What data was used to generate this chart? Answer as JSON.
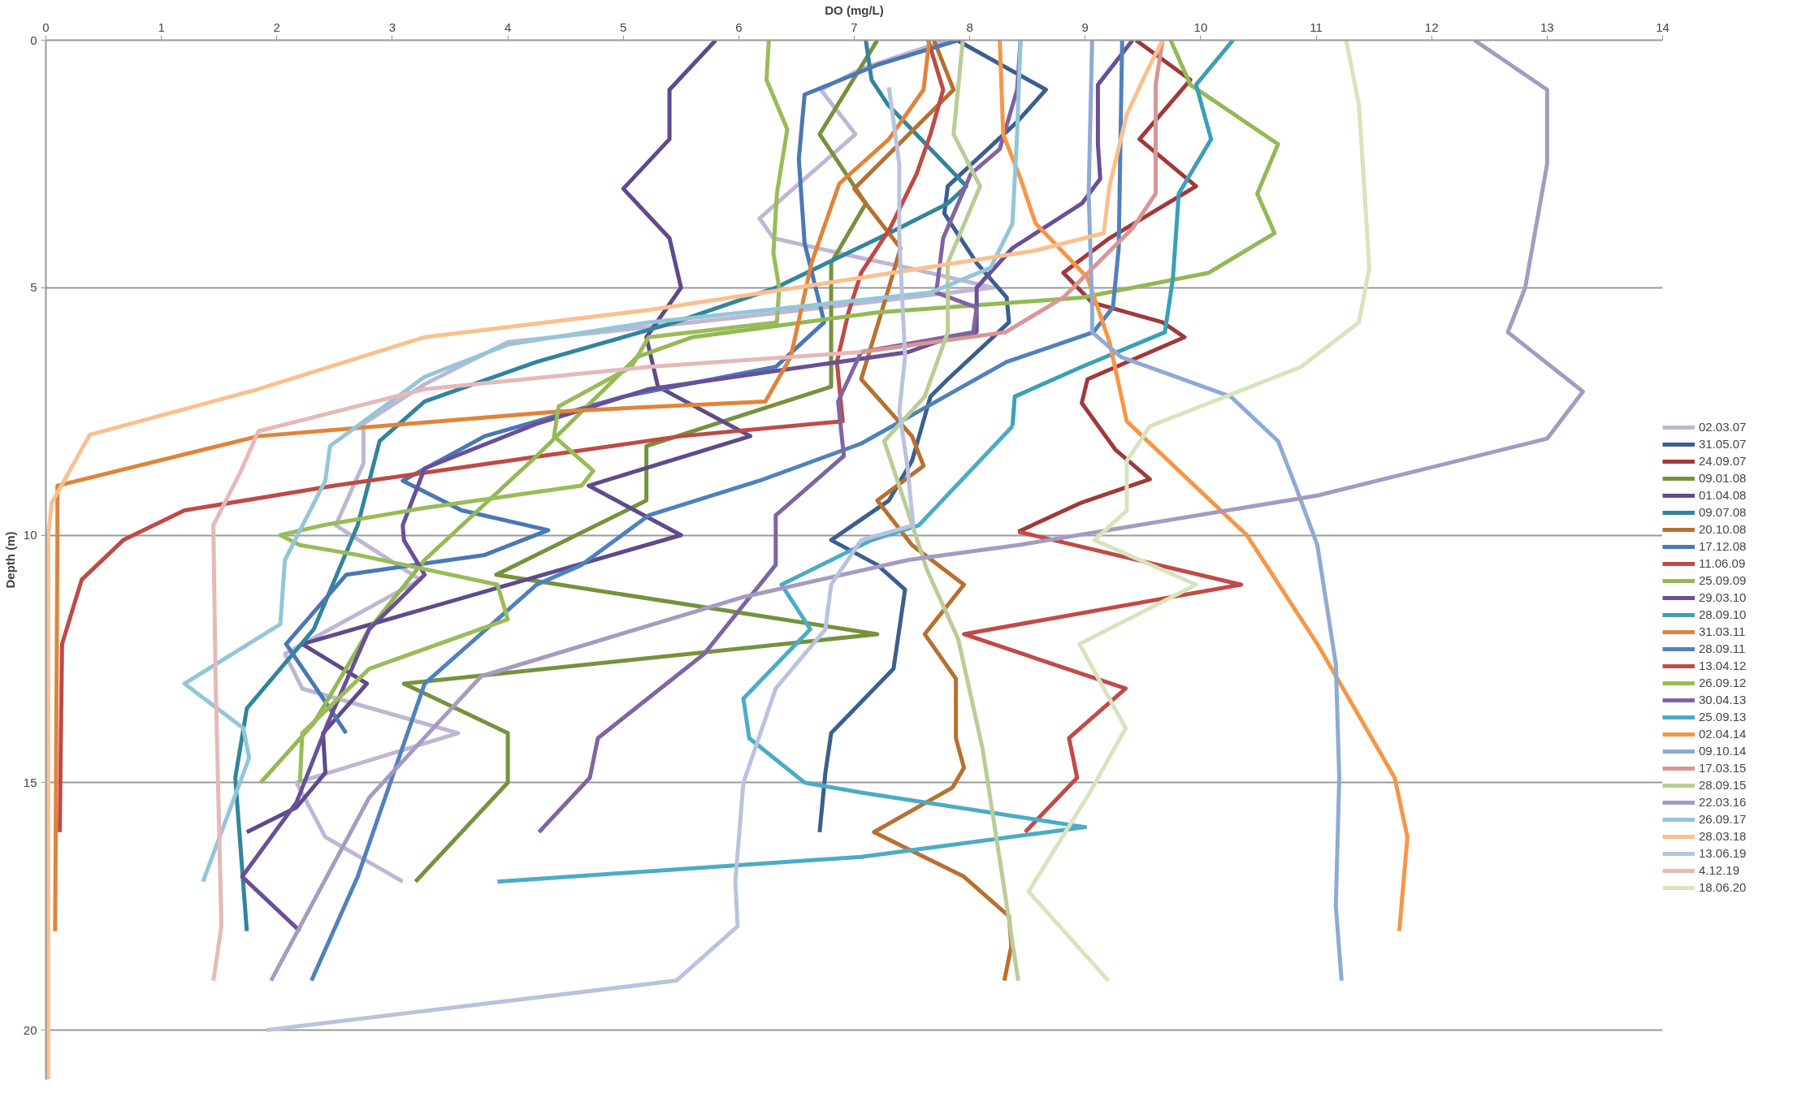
{
  "chart_data": {
    "type": "line",
    "xlabel": "DO (mg/L)",
    "ylabel": "Depth (m)",
    "xlim": [
      0,
      14
    ],
    "xticks": [
      0,
      1,
      2,
      3,
      4,
      5,
      6,
      7,
      8,
      9,
      10,
      11,
      12,
      13,
      14
    ],
    "ylim": [
      21,
      0
    ],
    "yticks": [
      0,
      5,
      10,
      15,
      20
    ],
    "grid": "y",
    "legend": "right",
    "marker": "none",
    "line_style": "solid",
    "series": [
      {
        "name": "02.03.07",
        "color": "#c0b6d4",
        "x": [
          7.8,
          7.06,
          6.71,
          7.01,
          6.18,
          6.3,
          7.06,
          7.47,
          8.2,
          6.0,
          4.0,
          3.28,
          2.75,
          2.75,
          2.51,
          3.24,
          2.07,
          2.22,
          3.57,
          2.17,
          2.42,
          3.09
        ],
        "values": [
          0,
          0.58,
          1.0,
          1.9,
          3.6,
          4.0,
          4.4,
          4.6,
          5.0,
          5.6,
          6.1,
          6.95,
          7.75,
          8.55,
          9.8,
          10.9,
          12.4,
          13.1,
          14.0,
          15.0,
          16.1,
          17.0
        ]
      },
      {
        "name": "31.05.07",
        "color": "#3b5f8e",
        "x": [
          7.89,
          8.66,
          8.41,
          7.81,
          7.78,
          8.06,
          8.32,
          8.34,
          7.81,
          7.66,
          7.5,
          7.3,
          6.8,
          7.2,
          7.44,
          7.34,
          6.8,
          6.75,
          6.7
        ],
        "values": [
          0,
          1.0,
          1.65,
          2.95,
          3.5,
          4.5,
          5.2,
          5.7,
          6.85,
          7.2,
          8.5,
          9.3,
          10.1,
          10.6,
          11.1,
          12.7,
          14.0,
          14.8,
          16.0
        ]
      },
      {
        "name": "24.09.07",
        "color": "#a0393b",
        "x": [
          9.44,
          9.91,
          9.47,
          9.96,
          9.21,
          8.81,
          9.06,
          9.67,
          9.86,
          9.02,
          8.97,
          9.26,
          9.56,
          8.97,
          8.42
        ],
        "values": [
          0,
          0.8,
          2.0,
          2.95,
          4.0,
          4.7,
          5.3,
          5.7,
          6.0,
          6.85,
          7.33,
          8.27,
          8.87,
          9.34,
          9.93
        ]
      },
      {
        "name": "09.01.08",
        "color": "#76923c",
        "x": [
          7.2,
          6.7,
          7.1,
          6.8,
          6.8,
          5.2,
          5.2,
          3.9,
          7.2,
          3.1,
          4.0,
          4.0,
          3.2
        ],
        "values": [
          0,
          1.9,
          3.3,
          4.5,
          7.0,
          8.2,
          9.3,
          10.8,
          12.0,
          13.0,
          14.0,
          15.0,
          17.0
        ]
      },
      {
        "name": "01.04.08",
        "color": "#5f4a8b",
        "x": [
          5.8,
          5.4,
          5.4,
          5.0,
          5.4,
          5.5,
          5.2,
          5.3,
          6.1,
          4.7,
          5.5,
          2.22,
          2.78,
          2.4,
          2.42,
          2.17,
          1.74
        ],
        "values": [
          0,
          1,
          2,
          3,
          4,
          5,
          6,
          7,
          8,
          9,
          10,
          12.2,
          13.0,
          14.0,
          14.8,
          15.5,
          16.0
        ]
      },
      {
        "name": "09.07.08",
        "color": "#31859c",
        "x": [
          7.1,
          7.15,
          7.29,
          7.97,
          7.81,
          7.3,
          6.32,
          5.45,
          4.25,
          3.28,
          2.89,
          2.7,
          2.32,
          1.74,
          1.64,
          1.74
        ],
        "values": [
          0,
          0.8,
          1.3,
          2.95,
          3.3,
          3.9,
          5.0,
          5.7,
          6.5,
          7.3,
          8.1,
          9.8,
          11.9,
          13.5,
          14.9,
          18.0
        ]
      },
      {
        "name": "20.10.08",
        "color": "#b8702f",
        "x": [
          7.69,
          7.86,
          7.0,
          7.4,
          7.3,
          7.06,
          7.5,
          7.6,
          7.2,
          7.5,
          7.95,
          7.61,
          7.88,
          7.88,
          7.95,
          7.85,
          7.17,
          7.95,
          8.34,
          8.36,
          8.3
        ],
        "values": [
          0,
          1.0,
          3.0,
          4.2,
          5.0,
          6.85,
          8.0,
          8.6,
          9.3,
          10.2,
          11.0,
          12.0,
          12.9,
          14.1,
          14.7,
          15.1,
          16.0,
          16.9,
          17.7,
          18.3,
          19.0
        ]
      },
      {
        "name": "17.12.08",
        "color": "#4a78b5",
        "x": [
          7.9,
          7.2,
          6.57,
          6.52,
          6.57,
          6.74,
          6.32,
          5.0,
          3.8,
          3.09,
          3.6,
          4.35,
          3.8,
          2.6,
          2.08,
          2.4,
          2.6
        ],
        "values": [
          0,
          0.5,
          1.1,
          2.4,
          4.1,
          5.7,
          6.6,
          7.2,
          8.0,
          8.9,
          9.5,
          9.9,
          10.4,
          10.8,
          12.2,
          13.3,
          14.0
        ]
      },
      {
        "name": "11.06.09",
        "color": "#bf4a46",
        "x": [
          7.64,
          7.77,
          7.66,
          7.54,
          7.31,
          7.06,
          6.95,
          6.85,
          6.9,
          5.5,
          4.0,
          2.5,
          1.2,
          0.67,
          0.31,
          0.14,
          0.13,
          0.12
        ],
        "values": [
          0,
          1.0,
          1.9,
          2.7,
          3.8,
          4.7,
          5.5,
          6.5,
          7.7,
          8.0,
          8.5,
          9.0,
          9.5,
          10.1,
          10.9,
          12.2,
          14.0,
          16.0
        ]
      },
      {
        "name": "25.09.09",
        "color": "#93b955",
        "x": [
          9.74,
          9.91,
          10.67,
          10.49,
          10.64,
          10.07,
          8.97,
          7.2,
          6.4,
          5.6,
          5.12,
          4.25,
          3.28,
          2.8,
          2.32,
          1.86
        ],
        "values": [
          0,
          0.9,
          2.1,
          3.1,
          3.9,
          4.7,
          5.2,
          5.5,
          5.75,
          6.0,
          6.4,
          8.4,
          10.5,
          11.9,
          13.8,
          15.0
        ]
      },
      {
        "name": "29.03.10",
        "color": "#6a4f99",
        "x": [
          9.41,
          9.11,
          9.11,
          9.13,
          8.97,
          8.37,
          8.06,
          8.06,
          7.71,
          7.47,
          5.22,
          4.25,
          3.28,
          3.09,
          3.1,
          3.28,
          2.8,
          2.44,
          2.17,
          1.7,
          2.2
        ],
        "values": [
          0,
          0.9,
          2.1,
          2.8,
          3.3,
          4.2,
          5.0,
          5.9,
          6.1,
          6.3,
          7.05,
          7.75,
          8.65,
          9.8,
          10.1,
          10.8,
          11.9,
          13.8,
          15.4,
          16.9,
          18.0
        ]
      },
      {
        "name": "28.09.10",
        "color": "#3aa0b8",
        "x": [
          10.28,
          9.96,
          10.09,
          9.81,
          9.76,
          9.69,
          8.97,
          8.39,
          8.37
        ],
        "values": [
          0,
          0.9,
          2.0,
          3.1,
          4.8,
          5.9,
          6.6,
          7.2,
          7.8
        ]
      },
      {
        "name": "31.03.11",
        "color": "#e0843b",
        "x": [
          7.65,
          7.6,
          7.3,
          6.87,
          6.63,
          6.45,
          6.23,
          4.44,
          1.84,
          0.1,
          0.1,
          0.08
        ],
        "values": [
          0,
          1,
          2,
          2.9,
          4.5,
          6.4,
          7.3,
          7.5,
          8.0,
          9.0,
          10.0,
          18.0
        ]
      },
      {
        "name": "28.09.11",
        "color": "#4f81bd",
        "x": [
          9.32,
          9.29,
          9.24,
          9.07,
          8.32,
          7.06,
          6.18,
          5.22,
          4.64,
          4.25,
          3.28,
          2.7,
          2.3
        ],
        "values": [
          0,
          4.2,
          5.4,
          5.9,
          6.5,
          8.15,
          8.9,
          9.6,
          10.6,
          11.0,
          13.0,
          16.9,
          19.0
        ]
      },
      {
        "name": "13.04.12",
        "color": "#c24a47",
        "x": [
          8.42,
          10.35,
          7.95,
          9.35,
          8.86,
          8.93,
          8.48
        ],
        "values": [
          9.93,
          11.0,
          12.0,
          13.1,
          14.1,
          14.9,
          16.0
        ]
      },
      {
        "name": "26.09.12",
        "color": "#9bbb59",
        "x": [
          6.26,
          6.24,
          6.42,
          6.33,
          6.3,
          6.35,
          6.33,
          5.22,
          5.07,
          4.44,
          4.4,
          4.74,
          4.64,
          3.28,
          2.4,
          2.03,
          2.2,
          2.7,
          3.91,
          4.0,
          2.8,
          2.22,
          2.2
        ],
        "values": [
          0,
          0.8,
          1.8,
          3.1,
          4.3,
          5.0,
          5.7,
          6.0,
          6.6,
          7.4,
          8.0,
          8.7,
          9.0,
          9.45,
          9.8,
          10.0,
          10.2,
          10.4,
          11.0,
          11.7,
          12.7,
          14.0,
          15.0
        ]
      },
      {
        "name": "30.04.13",
        "color": "#8064a2",
        "x": [
          8.44,
          8.41,
          8.26,
          8.01,
          7.77,
          7.71,
          8.06,
          8.03,
          7.06,
          6.86,
          6.91,
          6.32,
          6.32,
          5.7,
          4.78,
          4.71,
          4.27
        ],
        "values": [
          0,
          1.0,
          2.2,
          2.7,
          4.0,
          5.1,
          5.4,
          5.9,
          6.3,
          7.3,
          8.4,
          9.6,
          10.6,
          12.4,
          14.1,
          14.9,
          16.0
        ]
      },
      {
        "name": "25.09.13",
        "color": "#4bacc6",
        "x": [
          8.37,
          7.56,
          7.15,
          6.37,
          6.62,
          6.04,
          6.09,
          6.57,
          7.06,
          9.0,
          7.06,
          3.91
        ],
        "values": [
          7.8,
          9.8,
          10.1,
          11.0,
          11.9,
          13.3,
          14.1,
          15.0,
          15.2,
          15.9,
          16.5,
          17.0
        ]
      },
      {
        "name": "02.04.14",
        "color": "#f79646",
        "x": [
          8.26,
          8.29,
          8.44,
          8.57,
          9.02,
          9.21,
          9.36,
          10.4,
          11.01,
          11.68,
          11.79,
          11.72
        ],
        "values": [
          0,
          1.9,
          2.8,
          3.7,
          4.8,
          6.1,
          7.7,
          10.0,
          12.2,
          14.9,
          16.1,
          18.0
        ]
      },
      {
        "name": "09.10.14",
        "color": "#8faad3",
        "x": [
          9.06,
          9.03,
          9.06,
          9.06,
          9.31,
          10.26,
          10.67,
          10.82,
          11.01,
          11.17,
          11.2,
          11.17,
          11.22
        ],
        "values": [
          0,
          3.1,
          5.4,
          5.9,
          6.4,
          7.2,
          8.1,
          9.0,
          10.2,
          12.6,
          14.9,
          17.5,
          19.0
        ]
      },
      {
        "name": "17.03.15",
        "color": "#d99694",
        "x": [
          9.67,
          9.61,
          9.61,
          9.41,
          8.81,
          8.31,
          7.06
        ],
        "values": [
          0,
          0.9,
          3.1,
          3.8,
          5.2,
          5.9,
          6.3
        ]
      },
      {
        "name": "28.09.15",
        "color": "#b9cd96",
        "x": [
          7.94,
          7.86,
          8.09,
          7.81,
          7.81,
          7.61,
          7.26,
          7.46,
          7.63,
          7.9,
          8.11,
          8.25,
          8.42
        ],
        "values": [
          0,
          1.9,
          2.95,
          4.5,
          5.9,
          7.2,
          8.1,
          9.5,
          10.7,
          12.1,
          14.3,
          16.4,
          19.0
        ]
      },
      {
        "name": "22.03.16",
        "color": "#a59bc0",
        "x": [
          12.37,
          13.0,
          13.0,
          12.81,
          12.66,
          13.31,
          13.0,
          11.01,
          8.42,
          7.47,
          6.04,
          3.77,
          2.8,
          1.95
        ],
        "values": [
          0,
          1.0,
          2.5,
          5.0,
          5.9,
          7.1,
          8.05,
          9.2,
          10.2,
          10.5,
          11.25,
          12.85,
          15.3,
          19.0
        ]
      },
      {
        "name": "26.09.17",
        "color": "#93c6d8",
        "x": [
          8.44,
          8.41,
          8.37,
          8.18,
          7.66,
          7.06,
          5.22,
          4.0,
          3.28,
          2.46,
          2.42,
          2.07,
          2.03,
          1.2,
          1.71,
          1.76,
          1.36
        ],
        "values": [
          0,
          1.9,
          3.7,
          4.6,
          5.1,
          5.25,
          5.7,
          6.15,
          6.8,
          8.2,
          8.9,
          10.5,
          11.8,
          13.0,
          13.9,
          14.5,
          17.0
        ]
      },
      {
        "name": "28.03.18",
        "color": "#fac08f",
        "x": [
          9.67,
          9.52,
          9.36,
          9.21,
          9.16,
          8.57,
          7.06,
          5.22,
          3.28,
          1.84,
          0.38,
          0.05,
          0.02,
          0.02
        ],
        "values": [
          0,
          0.7,
          1.5,
          2.95,
          3.9,
          4.25,
          4.8,
          5.45,
          6.0,
          7.05,
          7.97,
          9.35,
          10.0,
          21.0
        ]
      },
      {
        "name": "13.06.19",
        "color": "#b9c3de",
        "x": [
          7.3,
          7.39,
          7.39,
          7.44,
          7.39,
          7.46,
          7.51,
          7.06,
          6.8,
          6.75,
          6.32,
          6.04,
          5.97,
          5.99,
          5.46,
          1.91
        ],
        "values": [
          0.95,
          2.5,
          4.0,
          6.4,
          7.5,
          8.6,
          9.8,
          10.1,
          11.0,
          11.9,
          13.1,
          15.0,
          17.0,
          17.9,
          19.0,
          20.0
        ]
      },
      {
        "name": "4.12.19",
        "color": "#e6b9b8",
        "x": [
          7.06,
          5.22,
          3.28,
          1.84,
          1.69,
          1.45,
          1.47,
          1.52,
          1.45
        ],
        "values": [
          6.3,
          6.6,
          7.05,
          7.9,
          8.7,
          9.8,
          13.0,
          17.9,
          19.0
        ]
      },
      {
        "name": "18.06.20",
        "color": "#d7e4bd",
        "x": [
          11.26,
          11.37,
          11.42,
          11.46,
          11.37,
          10.87,
          9.56,
          9.36,
          9.36,
          9.08,
          9.96,
          8.95,
          9.35,
          9.04,
          8.51,
          9.2
        ],
        "values": [
          0,
          1.3,
          3.1,
          4.6,
          5.7,
          6.6,
          7.8,
          8.5,
          9.5,
          10.1,
          11.0,
          12.2,
          13.9,
          15.2,
          17.2,
          19.0
        ]
      }
    ]
  }
}
